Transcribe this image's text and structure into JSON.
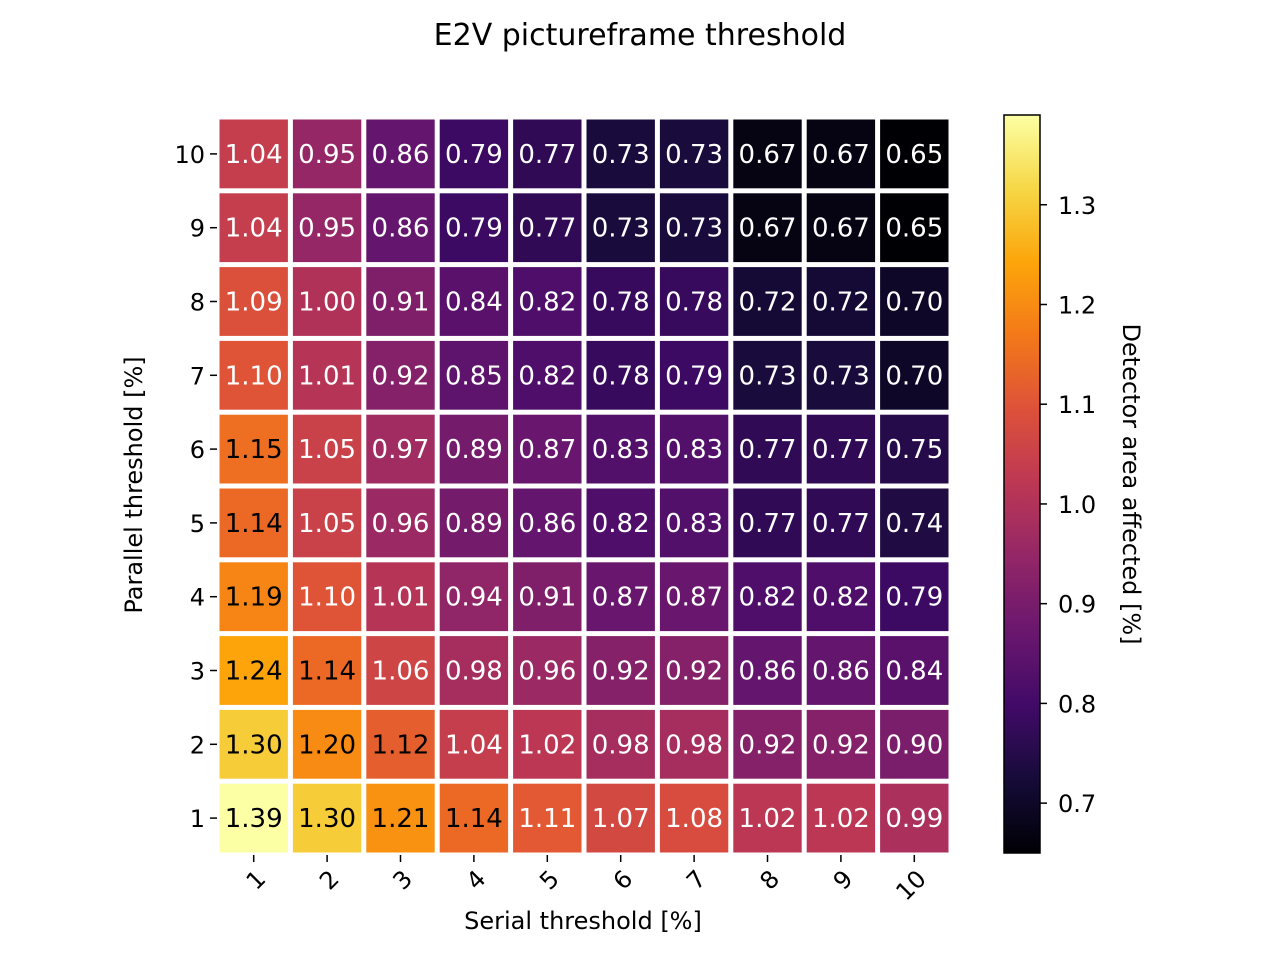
{
  "chart_data": {
    "type": "heatmap",
    "title": "E2V pictureframe threshold",
    "xlabel": "Serial threshold [%]",
    "ylabel": "Parallel threshold [%]",
    "x_categories": [
      "1",
      "2",
      "3",
      "4",
      "5",
      "6",
      "7",
      "8",
      "9",
      "10"
    ],
    "y_categories": [
      "10",
      "9",
      "8",
      "7",
      "6",
      "5",
      "4",
      "3",
      "2",
      "1"
    ],
    "values": [
      [
        1.04,
        0.95,
        0.86,
        0.79,
        0.77,
        0.73,
        0.73,
        0.67,
        0.67,
        0.65
      ],
      [
        1.04,
        0.95,
        0.86,
        0.79,
        0.77,
        0.73,
        0.73,
        0.67,
        0.67,
        0.65
      ],
      [
        1.09,
        1.0,
        0.91,
        0.84,
        0.82,
        0.78,
        0.78,
        0.72,
        0.72,
        0.7
      ],
      [
        1.1,
        1.01,
        0.92,
        0.85,
        0.82,
        0.78,
        0.79,
        0.73,
        0.73,
        0.7
      ],
      [
        1.15,
        1.05,
        0.97,
        0.89,
        0.87,
        0.83,
        0.83,
        0.77,
        0.77,
        0.75
      ],
      [
        1.14,
        1.05,
        0.96,
        0.89,
        0.86,
        0.82,
        0.83,
        0.77,
        0.77,
        0.74
      ],
      [
        1.19,
        1.1,
        1.01,
        0.94,
        0.91,
        0.87,
        0.87,
        0.82,
        0.82,
        0.79
      ],
      [
        1.24,
        1.14,
        1.06,
        0.98,
        0.96,
        0.92,
        0.92,
        0.86,
        0.86,
        0.84
      ],
      [
        1.3,
        1.2,
        1.12,
        1.04,
        1.02,
        0.98,
        0.98,
        0.92,
        0.92,
        0.9
      ],
      [
        1.39,
        1.3,
        1.21,
        1.14,
        1.11,
        1.07,
        1.08,
        1.02,
        1.02,
        0.99
      ]
    ],
    "colormap": "inferno",
    "vmin": 0.65,
    "vmax": 1.39,
    "colorbar": {
      "label": "Detector area affected [%]",
      "ticks": [
        0.7,
        0.8,
        0.9,
        1.0,
        1.1,
        1.2,
        1.3
      ],
      "tick_labels": [
        "0.7",
        "0.8",
        "0.9",
        "1.0",
        "1.1",
        "1.2",
        "1.3"
      ]
    },
    "annotation_format": "2 decimals",
    "cell_separator_color": "#ffffff"
  }
}
